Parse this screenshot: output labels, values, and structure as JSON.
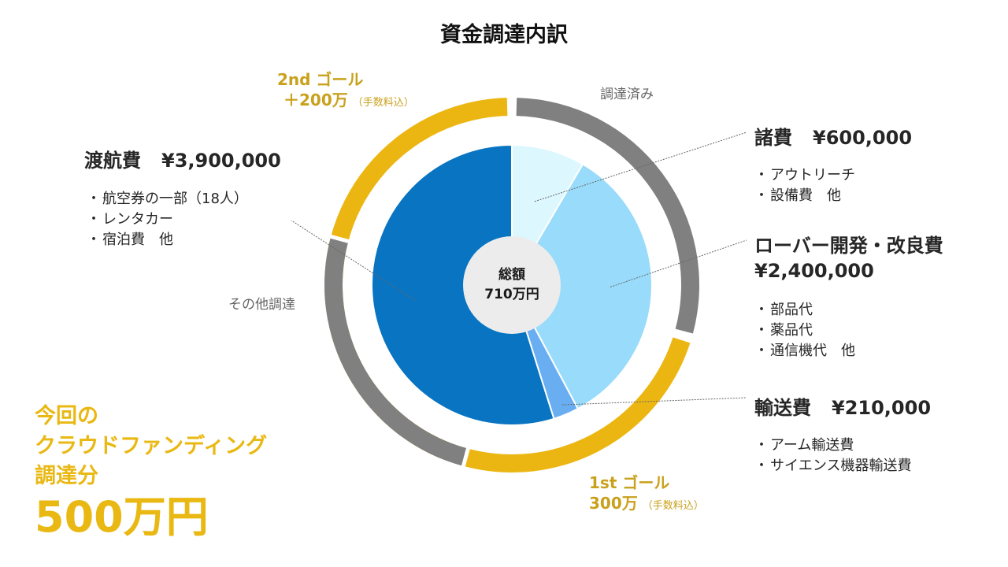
{
  "title": "資金調達内訳",
  "center": {
    "line1": "総額",
    "line2": "710万円"
  },
  "chart_data": {
    "type": "pie",
    "title": "資金調達内訳",
    "total_label": "710万円",
    "slices": [
      {
        "name": "諸費",
        "amount": 600000,
        "color": "#dcf7fd"
      },
      {
        "name": "ローバー開発・改良費",
        "amount": 2400000,
        "color": "#99dbfa"
      },
      {
        "name": "輸送費",
        "amount": 210000,
        "color": "#6aaef2"
      },
      {
        "name": "渡航費",
        "amount": 3900000,
        "color": "#0874c2"
      }
    ],
    "rings": {
      "funding_status": [
        {
          "label": "調達済み",
          "amount": 2100000,
          "color": "#808080"
        },
        {
          "label": "1st ゴール",
          "amount": 3000000,
          "color": "#ecb612"
        },
        {
          "label": "2nd ゴール",
          "amount": 2000000,
          "color": "#ecb612"
        }
      ],
      "other_funding": {
        "label": "その他調達",
        "color": "#808080"
      }
    }
  },
  "categories": {
    "misc": {
      "name": "諸費",
      "amount_text": "¥600,000",
      "items": [
        "アウトリーチ",
        "設備費　他"
      ]
    },
    "rover": {
      "name": "ローバー開発・改良費",
      "amount_text": "¥2,400,000",
      "items": [
        "部品代",
        "薬品代",
        "通信機代　他"
      ]
    },
    "transport": {
      "name": "輸送費",
      "amount_text": "¥210,000",
      "items": [
        "アーム輸送費",
        "サイエンス機器輸送費"
      ]
    },
    "travel": {
      "name": "渡航費",
      "amount_text": "¥3,900,000",
      "items": [
        "航空券の一部（18人）",
        "レンタカー",
        "宿泊費　他"
      ]
    }
  },
  "goals": {
    "second": {
      "title": "2nd ゴール",
      "amount": "＋200万",
      "note": "（手数料込）"
    },
    "first": {
      "title": "1st ゴール",
      "amount": "300万",
      "note": "（手数料込）"
    }
  },
  "ring_labels": {
    "raised": "調達済み",
    "other": "その他調達"
  },
  "crowdfunding": {
    "line1": "今回の",
    "line2": "クラウドファンディング",
    "line3": "調達分",
    "amount": "500万円"
  }
}
